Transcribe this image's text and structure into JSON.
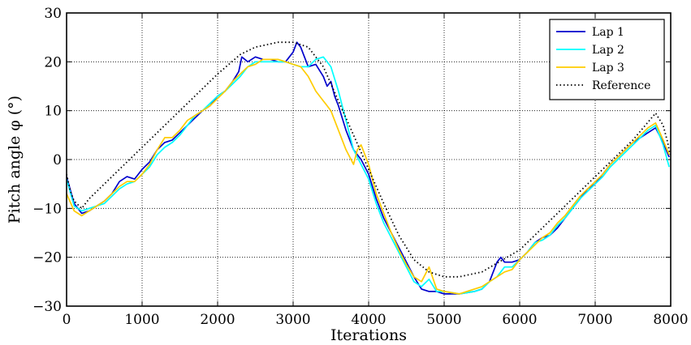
{
  "chart_data": {
    "type": "line",
    "xlabel": "Iterations",
    "ylabel": "Pitch angle φ (°)",
    "xlim": [
      0,
      8000
    ],
    "ylim": [
      -30,
      30
    ],
    "xticks": [
      0,
      1000,
      2000,
      3000,
      4000,
      5000,
      6000,
      7000,
      8000
    ],
    "yticks": [
      -30,
      -20,
      -10,
      0,
      10,
      20,
      30
    ],
    "xtick_labels": [
      "0",
      "1000",
      "2000",
      "3000",
      "4000",
      "5000",
      "6000",
      "7000",
      "8000"
    ],
    "ytick_labels": [
      "−30",
      "−20",
      "−10",
      "0",
      "10",
      "20",
      "30"
    ],
    "grid": true,
    "legend_position": "top-right",
    "series": [
      {
        "name": "Lap 1",
        "color": "#0000cc",
        "style": "solid",
        "points": [
          [
            0,
            -3.5
          ],
          [
            100,
            -9
          ],
          [
            200,
            -11
          ],
          [
            300,
            -10.5
          ],
          [
            400,
            -9.5
          ],
          [
            500,
            -8.5
          ],
          [
            600,
            -7
          ],
          [
            700,
            -4.5
          ],
          [
            800,
            -3.5
          ],
          [
            900,
            -4
          ],
          [
            1000,
            -2
          ],
          [
            1100,
            -0.5
          ],
          [
            1200,
            2
          ],
          [
            1300,
            3.5
          ],
          [
            1400,
            4
          ],
          [
            1500,
            5.5
          ],
          [
            1600,
            7
          ],
          [
            1700,
            8.5
          ],
          [
            1800,
            10
          ],
          [
            1900,
            11
          ],
          [
            2000,
            13
          ],
          [
            2100,
            14
          ],
          [
            2200,
            16
          ],
          [
            2280,
            18
          ],
          [
            2320,
            21
          ],
          [
            2400,
            20
          ],
          [
            2500,
            21
          ],
          [
            2600,
            20.5
          ],
          [
            2700,
            20.5
          ],
          [
            2800,
            20
          ],
          [
            2900,
            20
          ],
          [
            3000,
            22
          ],
          [
            3050,
            24
          ],
          [
            3100,
            23
          ],
          [
            3200,
            19
          ],
          [
            3300,
            19.5
          ],
          [
            3400,
            17
          ],
          [
            3450,
            15
          ],
          [
            3500,
            16
          ],
          [
            3550,
            13
          ],
          [
            3600,
            11
          ],
          [
            3700,
            6
          ],
          [
            3800,
            2
          ],
          [
            3900,
            0
          ],
          [
            4000,
            -3
          ],
          [
            4100,
            -8
          ],
          [
            4200,
            -12
          ],
          [
            4300,
            -15
          ],
          [
            4400,
            -18
          ],
          [
            4500,
            -21
          ],
          [
            4600,
            -24
          ],
          [
            4700,
            -26.5
          ],
          [
            4800,
            -27
          ],
          [
            4900,
            -27
          ],
          [
            5000,
            -27.5
          ],
          [
            5200,
            -27.5
          ],
          [
            5400,
            -27
          ],
          [
            5500,
            -26.5
          ],
          [
            5600,
            -25
          ],
          [
            5700,
            -21
          ],
          [
            5750,
            -20
          ],
          [
            5800,
            -21
          ],
          [
            5900,
            -21
          ],
          [
            6000,
            -20.5
          ],
          [
            6100,
            -19
          ],
          [
            6200,
            -17
          ],
          [
            6300,
            -16
          ],
          [
            6400,
            -15.5
          ],
          [
            6500,
            -14
          ],
          [
            6600,
            -12
          ],
          [
            6700,
            -10
          ],
          [
            6800,
            -8
          ],
          [
            6900,
            -6
          ],
          [
            7000,
            -5
          ],
          [
            7100,
            -3
          ],
          [
            7200,
            -1
          ],
          [
            7300,
            0.5
          ],
          [
            7400,
            2
          ],
          [
            7500,
            3.5
          ],
          [
            7600,
            4.5
          ],
          [
            7700,
            5.5
          ],
          [
            7800,
            6.5
          ],
          [
            7900,
            3.5
          ],
          [
            7980,
            0.5
          ]
        ]
      },
      {
        "name": "Lap 2",
        "color": "#00ffff",
        "style": "solid",
        "points": [
          [
            0,
            -4
          ],
          [
            100,
            -9.5
          ],
          [
            200,
            -10.5
          ],
          [
            300,
            -10
          ],
          [
            400,
            -9.5
          ],
          [
            500,
            -9
          ],
          [
            600,
            -7.5
          ],
          [
            700,
            -6
          ],
          [
            800,
            -5
          ],
          [
            900,
            -4.5
          ],
          [
            1000,
            -3
          ],
          [
            1100,
            -1.5
          ],
          [
            1200,
            1
          ],
          [
            1300,
            2.5
          ],
          [
            1400,
            3.5
          ],
          [
            1500,
            5
          ],
          [
            1600,
            7
          ],
          [
            1700,
            9
          ],
          [
            1800,
            10
          ],
          [
            1900,
            11.5
          ],
          [
            2000,
            13
          ],
          [
            2100,
            14
          ],
          [
            2200,
            15.5
          ],
          [
            2300,
            17
          ],
          [
            2400,
            19
          ],
          [
            2500,
            20
          ],
          [
            2600,
            20
          ],
          [
            2700,
            20
          ],
          [
            2800,
            20
          ],
          [
            2900,
            20
          ],
          [
            3000,
            19.5
          ],
          [
            3100,
            19
          ],
          [
            3200,
            19
          ],
          [
            3300,
            20.5
          ],
          [
            3400,
            21
          ],
          [
            3500,
            19
          ],
          [
            3600,
            14
          ],
          [
            3700,
            8
          ],
          [
            3800,
            2
          ],
          [
            3900,
            -1
          ],
          [
            4000,
            -4
          ],
          [
            4100,
            -9
          ],
          [
            4200,
            -13
          ],
          [
            4300,
            -16
          ],
          [
            4400,
            -19
          ],
          [
            4500,
            -22
          ],
          [
            4600,
            -25
          ],
          [
            4700,
            -26
          ],
          [
            4800,
            -24.5
          ],
          [
            4900,
            -27
          ],
          [
            5000,
            -27
          ],
          [
            5200,
            -27.5
          ],
          [
            5400,
            -27
          ],
          [
            5500,
            -26.5
          ],
          [
            5600,
            -25
          ],
          [
            5700,
            -24
          ],
          [
            5800,
            -22
          ],
          [
            5900,
            -22
          ],
          [
            6000,
            -20.5
          ],
          [
            6100,
            -19
          ],
          [
            6200,
            -17
          ],
          [
            6300,
            -16.5
          ],
          [
            6400,
            -15.5
          ],
          [
            6500,
            -13.5
          ],
          [
            6600,
            -12
          ],
          [
            6700,
            -10
          ],
          [
            6800,
            -8
          ],
          [
            6900,
            -6.5
          ],
          [
            7000,
            -5
          ],
          [
            7100,
            -3.5
          ],
          [
            7200,
            -1.5
          ],
          [
            7300,
            0
          ],
          [
            7400,
            1.5
          ],
          [
            7500,
            3
          ],
          [
            7600,
            4.5
          ],
          [
            7700,
            6
          ],
          [
            7800,
            7
          ],
          [
            7900,
            3
          ],
          [
            7980,
            -1.5
          ]
        ]
      },
      {
        "name": "Lap 3",
        "color": "#ffcc00",
        "style": "solid",
        "points": [
          [
            0,
            -7
          ],
          [
            100,
            -10.5
          ],
          [
            200,
            -11.5
          ],
          [
            300,
            -10.5
          ],
          [
            400,
            -9.5
          ],
          [
            500,
            -8.5
          ],
          [
            600,
            -7
          ],
          [
            700,
            -5.5
          ],
          [
            800,
            -4.5
          ],
          [
            900,
            -4.5
          ],
          [
            1000,
            -3
          ],
          [
            1100,
            -1
          ],
          [
            1200,
            2
          ],
          [
            1300,
            4.5
          ],
          [
            1400,
            4.5
          ],
          [
            1500,
            6
          ],
          [
            1600,
            8
          ],
          [
            1700,
            9
          ],
          [
            1800,
            10
          ],
          [
            1900,
            11
          ],
          [
            2000,
            12.5
          ],
          [
            2100,
            14
          ],
          [
            2200,
            16
          ],
          [
            2300,
            17.5
          ],
          [
            2400,
            19
          ],
          [
            2500,
            19.5
          ],
          [
            2600,
            20.5
          ],
          [
            2700,
            20.5
          ],
          [
            2800,
            20.5
          ],
          [
            2900,
            20
          ],
          [
            3000,
            19.5
          ],
          [
            3100,
            19
          ],
          [
            3200,
            17
          ],
          [
            3300,
            14
          ],
          [
            3400,
            12
          ],
          [
            3450,
            11
          ],
          [
            3500,
            10
          ],
          [
            3600,
            6
          ],
          [
            3700,
            2
          ],
          [
            3800,
            -1
          ],
          [
            3850,
            2
          ],
          [
            3900,
            3
          ],
          [
            4000,
            -1
          ],
          [
            4100,
            -7
          ],
          [
            4200,
            -11
          ],
          [
            4300,
            -15
          ],
          [
            4400,
            -18.5
          ],
          [
            4500,
            -21.5
          ],
          [
            4600,
            -24
          ],
          [
            4700,
            -25
          ],
          [
            4800,
            -22
          ],
          [
            4900,
            -26.5
          ],
          [
            5000,
            -27
          ],
          [
            5200,
            -27.5
          ],
          [
            5400,
            -26.5
          ],
          [
            5500,
            -26
          ],
          [
            5600,
            -25
          ],
          [
            5700,
            -24
          ],
          [
            5800,
            -23
          ],
          [
            5900,
            -22.5
          ],
          [
            6000,
            -20.5
          ],
          [
            6100,
            -19
          ],
          [
            6200,
            -17.5
          ],
          [
            6300,
            -16
          ],
          [
            6400,
            -15
          ],
          [
            6500,
            -13
          ],
          [
            6600,
            -11.5
          ],
          [
            6700,
            -9.5
          ],
          [
            6800,
            -7.5
          ],
          [
            6900,
            -6
          ],
          [
            7000,
            -4.5
          ],
          [
            7100,
            -3
          ],
          [
            7200,
            -1
          ],
          [
            7300,
            0.5
          ],
          [
            7400,
            2
          ],
          [
            7500,
            3.5
          ],
          [
            7600,
            5
          ],
          [
            7700,
            6.5
          ],
          [
            7800,
            7.5
          ],
          [
            7900,
            4
          ],
          [
            7980,
            1
          ]
        ]
      },
      {
        "name": "Reference",
        "color": "#000000",
        "style": "dotted",
        "points": [
          [
            0,
            -3
          ],
          [
            50,
            -6.5
          ],
          [
            100,
            -8.5
          ],
          [
            200,
            -10
          ],
          [
            300,
            -8
          ],
          [
            500,
            -5
          ],
          [
            1000,
            2.5
          ],
          [
            1500,
            10
          ],
          [
            2000,
            17.5
          ],
          [
            2300,
            21.5
          ],
          [
            2500,
            23
          ],
          [
            2800,
            24
          ],
          [
            3000,
            24
          ],
          [
            3200,
            23
          ],
          [
            3400,
            19
          ],
          [
            3600,
            12
          ],
          [
            3800,
            5
          ],
          [
            4000,
            -2
          ],
          [
            4200,
            -9
          ],
          [
            4400,
            -15.5
          ],
          [
            4600,
            -20.5
          ],
          [
            4800,
            -23
          ],
          [
            5000,
            -24
          ],
          [
            5200,
            -24
          ],
          [
            5500,
            -23
          ],
          [
            6000,
            -18.5
          ],
          [
            6500,
            -11
          ],
          [
            7000,
            -3.5
          ],
          [
            7500,
            4
          ],
          [
            7800,
            9.5
          ],
          [
            7900,
            7
          ],
          [
            7960,
            3.5
          ],
          [
            7990,
            1
          ]
        ]
      }
    ]
  }
}
